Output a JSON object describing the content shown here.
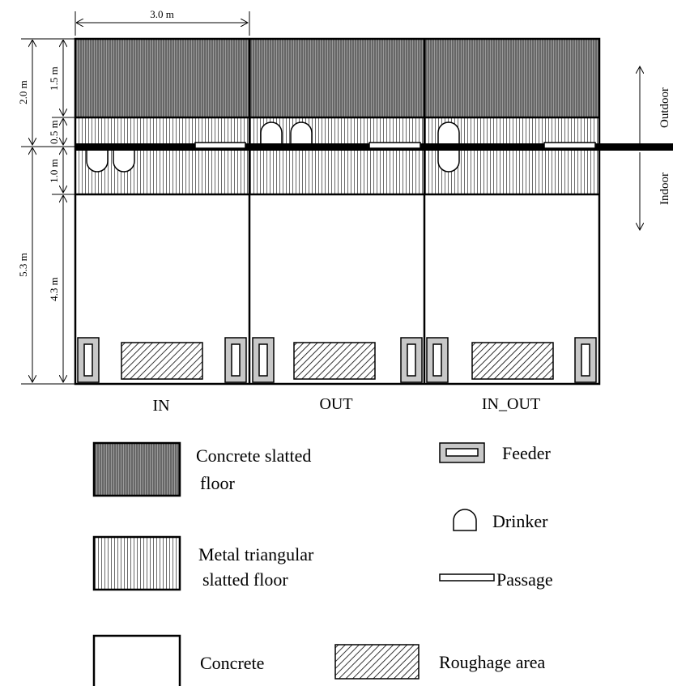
{
  "dimensions": {
    "width": "3.0 m",
    "outdoor_depth": "2.0 m",
    "concrete_slatted_depth": "1.5 m",
    "metal_outdoor_depth": "0.5 m",
    "metal_indoor_depth": "1.0 m",
    "indoor_depth": "5.3 m",
    "concrete_depth": "4.3 m"
  },
  "directions": {
    "outdoor": "Outdoor",
    "indoor": "Indoor"
  },
  "pens": [
    "IN",
    "OUT",
    "IN_OUT"
  ],
  "legend": {
    "concrete_slatted": [
      "Concrete slatted",
      "floor"
    ],
    "metal_slatted": [
      "Metal triangular",
      "slatted floor"
    ],
    "concrete": "Concrete",
    "feeder": "Feeder",
    "drinker": "Drinker",
    "passage": "Passage",
    "roughage": "Roughage area"
  }
}
